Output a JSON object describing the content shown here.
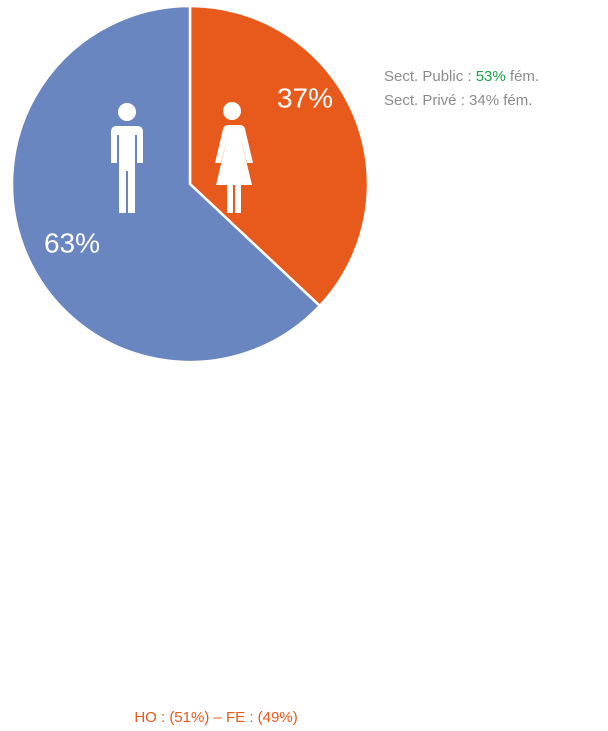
{
  "chart_data": {
    "type": "pie",
    "values": [
      37,
      63
    ],
    "value_labels": [
      "37%",
      "63%"
    ],
    "colors": [
      "#e8591c",
      "#6a86c0"
    ],
    "annotations": [
      [
        {
          "text": "Sect. Public : ",
          "color": "#8c8c8c"
        },
        {
          "text": "53%",
          "color": "#17a34a"
        },
        {
          "text": " fém.",
          "color": "#8c8c8c"
        }
      ],
      [
        {
          "text": "Sect. Privé : 34% fém.",
          "color": "#8c8c8c"
        }
      ]
    ],
    "footnote": {
      "text": "HO : (51%) – FE : (49%)",
      "color": "#e8591c"
    }
  }
}
